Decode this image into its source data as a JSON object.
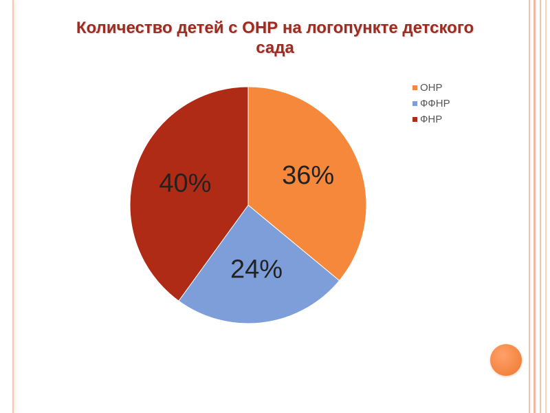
{
  "chart_data": {
    "type": "pie",
    "title": "Количество детей с ОНР на логопункте детского сада",
    "categories": [
      "ОНР",
      "ФФНР",
      "ФНР"
    ],
    "values": [
      36,
      24,
      40
    ],
    "labels": [
      "36%",
      "24%",
      "40%"
    ],
    "colors": [
      "#f5883a",
      "#7d9ed8",
      "#b02b16"
    ],
    "legend_position": "right"
  },
  "colors": {
    "title": "#9b2d22",
    "accent_circle": "#f58a48",
    "stripes": "#f3c3ad"
  }
}
